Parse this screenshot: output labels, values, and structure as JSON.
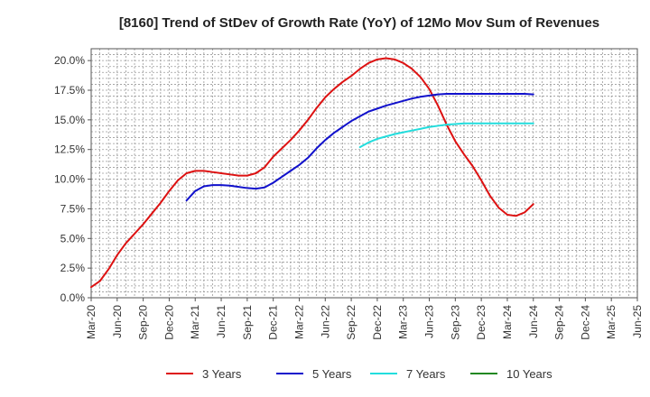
{
  "chart_data": {
    "type": "line",
    "title": "[8160]  Trend of StDev of Growth Rate (YoY) of 12Mo Mov Sum of Revenues",
    "xlabel": "",
    "ylabel": "",
    "ylim": [
      0,
      21
    ],
    "yticks": [
      0,
      2.5,
      5.0,
      7.5,
      10.0,
      12.5,
      15.0,
      17.5,
      20.0
    ],
    "ytick_labels": [
      "0.0%",
      "2.5%",
      "5.0%",
      "7.5%",
      "10.0%",
      "12.5%",
      "15.0%",
      "17.5%",
      "20.0%"
    ],
    "x_labels": [
      "Mar-20",
      "Jun-20",
      "Sep-20",
      "Dec-20",
      "Mar-21",
      "Jun-21",
      "Sep-21",
      "Dec-21",
      "Mar-22",
      "Jun-22",
      "Sep-22",
      "Dec-22",
      "Mar-23",
      "Jun-23",
      "Sep-23",
      "Dec-23",
      "Mar-24",
      "Jun-24",
      "Sep-24",
      "Dec-24",
      "Mar-25",
      "Jun-25"
    ],
    "grid": true,
    "legend_position": "bottom",
    "series": [
      {
        "name": "3 Years",
        "color": "#dd1111",
        "values": [
          0.9,
          1.4,
          2.4,
          3.6,
          4.6,
          5.4,
          6.2,
          7.1,
          8.0,
          9.0,
          9.9,
          10.5,
          10.7,
          10.7,
          10.6,
          10.5,
          10.4,
          10.3,
          10.3,
          10.5,
          11.0,
          11.9,
          12.6,
          13.3,
          14.1,
          15.0,
          16.0,
          16.9,
          17.6,
          18.2,
          18.7,
          19.3,
          19.8,
          20.1,
          20.2,
          20.1,
          19.8,
          19.3,
          18.6,
          17.6,
          16.2,
          14.6,
          13.2,
          12.1,
          11.1,
          9.9,
          8.6,
          7.6,
          7.0,
          6.9,
          7.2,
          7.9
        ]
      },
      {
        "name": "5 Years",
        "color": "#1111cc",
        "values": [
          null,
          null,
          null,
          null,
          null,
          null,
          null,
          null,
          null,
          null,
          null,
          8.2,
          9.0,
          9.4,
          9.5,
          9.5,
          9.45,
          9.35,
          9.25,
          9.2,
          9.3,
          9.7,
          10.2,
          10.7,
          11.2,
          11.8,
          12.6,
          13.3,
          13.9,
          14.4,
          14.9,
          15.3,
          15.7,
          15.95,
          16.2,
          16.4,
          16.6,
          16.8,
          16.95,
          17.05,
          17.15,
          17.2,
          17.2,
          17.2,
          17.2,
          17.2,
          17.2,
          17.2,
          17.2,
          17.2,
          17.2,
          17.15
        ]
      },
      {
        "name": "7 Years",
        "color": "#22dddd",
        "values": [
          null,
          null,
          null,
          null,
          null,
          null,
          null,
          null,
          null,
          null,
          null,
          null,
          null,
          null,
          null,
          null,
          null,
          null,
          null,
          null,
          null,
          null,
          null,
          null,
          null,
          null,
          null,
          null,
          null,
          null,
          null,
          12.7,
          13.1,
          13.4,
          13.6,
          13.8,
          13.95,
          14.1,
          14.25,
          14.4,
          14.5,
          14.6,
          14.65,
          14.7,
          14.7,
          14.7,
          14.7,
          14.7,
          14.7,
          14.7,
          14.7,
          14.7
        ]
      },
      {
        "name": "10 Years",
        "color": "#228822",
        "values": []
      }
    ]
  }
}
